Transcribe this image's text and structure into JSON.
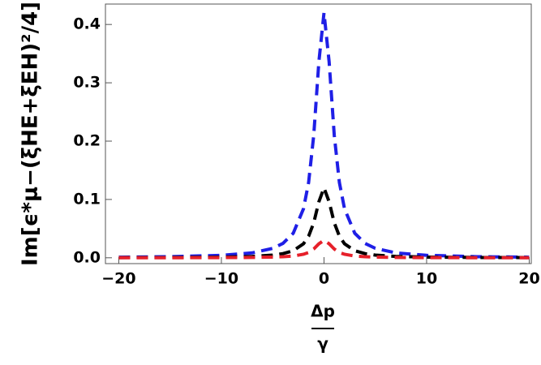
{
  "chart_data": {
    "type": "line",
    "xlabel": {
      "numerator": "Δp",
      "denominator": "γ"
    },
    "ylabel": "Im[ϵ*μ−(ξHE+ξEH)²/4]",
    "x": [
      -20,
      -15,
      -10,
      -7,
      -5,
      -4,
      -3,
      -2,
      -1.5,
      -1,
      -0.5,
      0,
      0.5,
      1,
      1.5,
      2,
      3,
      4,
      5,
      7,
      10,
      15,
      20
    ],
    "series": [
      {
        "color": "#1f1fe6",
        "values": [
          0.001,
          0.0019,
          0.0042,
          0.0084,
          0.0162,
          0.0247,
          0.042,
          0.084,
          0.129,
          0.21,
          0.336,
          0.42,
          0.336,
          0.21,
          0.129,
          0.084,
          0.042,
          0.0247,
          0.0162,
          0.0084,
          0.0042,
          0.0019,
          0.001
        ]
      },
      {
        "color": "#000000",
        "values": [
          0.0003,
          0.0005,
          0.0012,
          0.0024,
          0.0046,
          0.0071,
          0.012,
          0.024,
          0.037,
          0.06,
          0.096,
          0.12,
          0.096,
          0.06,
          0.037,
          0.024,
          0.012,
          0.0071,
          0.0046,
          0.0024,
          0.0012,
          0.0005,
          0.0003
        ]
      },
      {
        "color": "#e6202a",
        "values": [
          0.0001,
          0.0001,
          0.0003,
          0.0006,
          0.0012,
          0.0018,
          0.003,
          0.006,
          0.009,
          0.015,
          0.024,
          0.03,
          0.024,
          0.015,
          0.009,
          0.006,
          0.003,
          0.0018,
          0.0012,
          0.0006,
          0.0003,
          0.0001,
          0.0001
        ]
      }
    ],
    "xlim": [
      -21.3,
      20.2
    ],
    "ylim": [
      -0.01,
      0.435
    ],
    "xticks": [
      {
        "value": -20,
        "label": "−20"
      },
      {
        "value": -10,
        "label": "−10"
      },
      0,
      10,
      20
    ],
    "yticks": [
      {
        "value": 0,
        "label": "0.0"
      },
      0.1,
      0.2,
      0.3,
      0.4
    ]
  }
}
